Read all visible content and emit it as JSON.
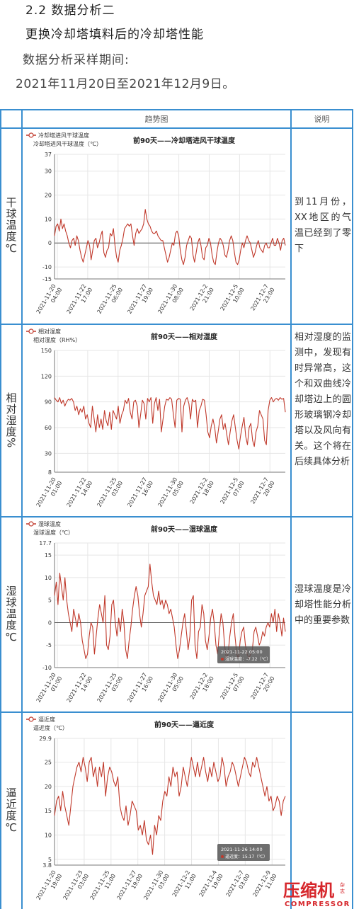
{
  "header": {
    "section": "2.2  数据分析二",
    "subtitle": "更换冷却塔填料后的冷却塔性能",
    "period_label": "数据分析采样期间:",
    "period_range": "2021年11月20日至2021年12月9日。"
  },
  "table": {
    "col_trend": "趋势图",
    "col_note": "说明"
  },
  "rows": [
    {
      "label": "干球温度℃",
      "note": "到11月份，XX地区的气温已经到了零下"
    },
    {
      "label": "相对湿度%",
      "note": "相对湿度的监测中，发现有时异常高，这个和双曲线冷却塔边上的圆形玻璃钢冷却塔以及风向有关。这个将在后续具体分析"
    },
    {
      "label": "湿球温度℃",
      "note": "湿球温度是冷却塔性能分析中的重要参数"
    },
    {
      "label": "逼近度℃",
      "note": ""
    }
  ],
  "chart_data": [
    {
      "type": "line",
      "title": "前90天——冷却塔进风干球温度",
      "legend": "冷却塔进风干球温度",
      "ylabel": "冷却塔进风干球温度（℃）",
      "ylim": [
        -15,
        37
      ],
      "yticks": [
        "37",
        "30",
        "20",
        "10",
        "0",
        "-10",
        "-15"
      ],
      "ytick_values": [
        37,
        30,
        20,
        10,
        0,
        -10,
        -15
      ],
      "xticks": [
        "2021-11-20 04:00",
        "2021-11-22 17:00",
        "2021-11-25 06:00",
        "2021-11-27 19:00",
        "2021-11-30 08:00",
        "2021-12-2 21:00",
        "2021-12-5 10:00",
        "2021-12-7 23:00"
      ],
      "zero_line": 0,
      "series": [
        {
          "name": "冷却塔进风干球温度",
          "values": [
            3,
            7,
            8,
            5,
            10,
            6,
            8,
            5,
            3,
            0,
            -2,
            1,
            2,
            -1,
            3,
            1,
            -3,
            -6,
            -8,
            -5,
            -2,
            1,
            -1,
            -7,
            -3,
            1,
            2,
            -2,
            0,
            3,
            5,
            -4,
            -6,
            -3,
            -2,
            4,
            3,
            6,
            -1,
            -6,
            -8,
            -3,
            -1,
            2,
            6,
            7,
            8,
            7,
            8,
            3,
            -1,
            4,
            6,
            4,
            5,
            6,
            8,
            14,
            10,
            8,
            7,
            5,
            4,
            4,
            5,
            3,
            2,
            1,
            1,
            -2,
            -5,
            -8,
            -6,
            -3,
            0,
            -1,
            4,
            5,
            3,
            -3,
            -7,
            -9,
            -6,
            -1,
            1,
            3,
            2,
            -5,
            -8,
            -4,
            0,
            2,
            -1,
            -6,
            -7,
            -2,
            -1,
            2,
            0,
            -5,
            -8,
            -9,
            -4,
            0,
            2,
            1,
            -1,
            -5,
            -6,
            -3,
            1,
            3,
            1,
            -4,
            -8,
            -9,
            -7,
            -3,
            0,
            -2,
            1,
            3,
            1,
            0,
            -3,
            -6,
            -4,
            -1,
            1,
            -2,
            -3,
            -4,
            -1,
            0,
            -2,
            -2,
            0,
            2,
            -1,
            -1,
            2,
            0,
            -3,
            1,
            2,
            -1
          ]
        }
      ]
    },
    {
      "type": "line",
      "title": "前90天——相对湿度",
      "legend": "相对湿度",
      "ylabel": "相对湿度（RH%）",
      "ylim": [
        8,
        150
      ],
      "yticks": [
        "150",
        "120",
        "90",
        "60",
        "30",
        "8"
      ],
      "ytick_values": [
        150,
        120,
        90,
        60,
        30,
        8
      ],
      "xticks": [
        "2021-11-20 01:00",
        "2021-11-22 14:00",
        "2021-11-25 03:00",
        "2021-11-27 16:00",
        "2021-11-30 05:00",
        "2021-12-2 18:00",
        "2021-12-5 07:00",
        "2021-12-7 20:00"
      ],
      "series": [
        {
          "name": "相对湿度",
          "values": [
            95,
            92,
            90,
            95,
            88,
            92,
            85,
            90,
            93,
            92,
            94,
            90,
            80,
            85,
            75,
            82,
            78,
            85,
            70,
            75,
            65,
            60,
            85,
            70,
            55,
            75,
            60,
            70,
            58,
            80,
            68,
            62,
            78,
            58,
            80,
            75,
            70,
            85,
            65,
            75,
            80,
            92,
            88,
            94,
            78,
            70,
            90,
            92,
            85,
            60,
            75,
            92,
            88,
            70,
            94,
            90,
            95,
            65,
            88,
            95,
            80,
            93,
            55,
            70,
            85,
            93,
            92,
            95,
            93,
            75,
            60,
            92,
            94,
            93,
            55,
            85,
            92,
            95,
            88,
            70,
            93,
            90,
            92,
            60,
            80,
            85,
            93,
            92,
            75,
            55,
            48,
            62,
            70,
            60,
            42,
            55,
            70,
            75,
            58,
            65,
            52,
            40,
            55,
            68,
            75,
            60,
            45,
            35,
            50,
            62,
            72,
            50,
            40,
            60,
            65,
            45,
            38,
            55,
            62,
            80,
            75,
            70,
            45,
            40,
            80,
            92,
            95,
            90,
            93,
            94,
            92,
            95,
            93,
            94,
            78
          ]
        }
      ]
    },
    {
      "type": "line",
      "title": "前90天——湿球温度",
      "legend": "湿球温度",
      "ylabel": "湿球温度（℃）",
      "ylim": [
        -10,
        17.7
      ],
      "yticks": [
        "17.7",
        "15",
        "10",
        "5",
        "0",
        "-5",
        "-10"
      ],
      "ytick_values": [
        17.7,
        15,
        10,
        5,
        0,
        -5,
        -10
      ],
      "xticks": [
        "2021-11-20 01:00",
        "2021-11-22 14:00",
        "2021-11-25 03:00",
        "2021-11-27 16:00",
        "2021-11-30 05:00",
        "2021-12-2 18:00",
        "2021-12-5 07:00",
        "2021-12-7 20:00"
      ],
      "zero_line": 0,
      "tooltip": {
        "date": "2021-11-22 05:00",
        "text": "湿球温度：-7.22（℃）"
      },
      "series": [
        {
          "name": "湿球温度",
          "values": [
            6,
            9,
            4,
            11,
            8,
            5,
            10,
            5,
            2,
            0,
            -2,
            3,
            1,
            -1,
            2,
            0,
            -4,
            -6,
            -8,
            -7,
            -3,
            0,
            -1,
            -7,
            -3,
            1,
            4,
            2,
            0,
            6,
            -5,
            -6,
            -3,
            4,
            5,
            0,
            -3,
            1,
            -2,
            3,
            0,
            -6,
            -8,
            -4,
            -1,
            3,
            6,
            8,
            6,
            2,
            -1,
            2,
            6,
            7,
            8,
            13,
            9,
            6,
            5,
            4,
            7,
            4,
            5,
            3,
            5,
            4,
            2,
            3,
            1,
            -1,
            -5,
            -8,
            -6,
            -3,
            0,
            2,
            -2,
            -6,
            -3,
            5,
            6,
            -5,
            -8,
            -2,
            -1,
            4,
            2,
            -4,
            -6,
            -3,
            1,
            3,
            0,
            -5,
            -7,
            -2,
            2,
            0,
            -5,
            -8,
            -7,
            -3,
            0,
            2,
            -3,
            -7,
            -8,
            -4,
            -2,
            -1,
            -5,
            -7,
            -8,
            -7,
            -6,
            -2,
            -1,
            -3,
            -5,
            -4,
            -2,
            -3,
            -1,
            0,
            -1,
            2,
            0,
            3,
            -2,
            2,
            0,
            -3,
            1,
            -2
          ]
        }
      ]
    },
    {
      "type": "line",
      "title": "前90天——逼近度",
      "legend": "逼近度",
      "ylabel": "逼近度（℃）",
      "ylim": [
        3.8,
        29.9
      ],
      "yticks": [
        "29.9",
        "25",
        "20",
        "15",
        "10",
        "5",
        "3.8"
      ],
      "ytick_values": [
        29.9,
        25,
        20,
        15,
        10,
        5,
        3.8
      ],
      "xticks": [
        "2021-11-20 19:00",
        "2021-11-23 03:00",
        "2021-11-25 11:00",
        "2021-11-27 19:00",
        "2021-11-30 03:00",
        "2021-12-2 11:00",
        "2021-12-4 19:00",
        "2021-12-7 03:00",
        "2021-12-9 11:00"
      ],
      "tooltip": {
        "date": "2021-11-26 14:00",
        "text": "逼近度：15.17（℃）"
      },
      "series": [
        {
          "name": "逼近度",
          "values": [
            14,
            17,
            18,
            15,
            19,
            16,
            14,
            12,
            16,
            20,
            22,
            24,
            25,
            23,
            26,
            24,
            21,
            25,
            26,
            22,
            24,
            20,
            24,
            22,
            25,
            18,
            22,
            24,
            23,
            21,
            20,
            22,
            16,
            14,
            13,
            16,
            12,
            14,
            17,
            16,
            15,
            11,
            12,
            10,
            13,
            9,
            8,
            10,
            6,
            12,
            10,
            14,
            13,
            17,
            19,
            18,
            22,
            20,
            24,
            22,
            23,
            18,
            20,
            24,
            22,
            20,
            23,
            26,
            24,
            22,
            25,
            22,
            24,
            26,
            23,
            21,
            24,
            22,
            25,
            23,
            21,
            22,
            26,
            24,
            20,
            22,
            23,
            25,
            24,
            22,
            20,
            22,
            24,
            26,
            25,
            23,
            22,
            25,
            24,
            26,
            24,
            22,
            20,
            18,
            20,
            17,
            18,
            15,
            16,
            18,
            17,
            14,
            17,
            18
          ]
        }
      ]
    }
  ]
}
